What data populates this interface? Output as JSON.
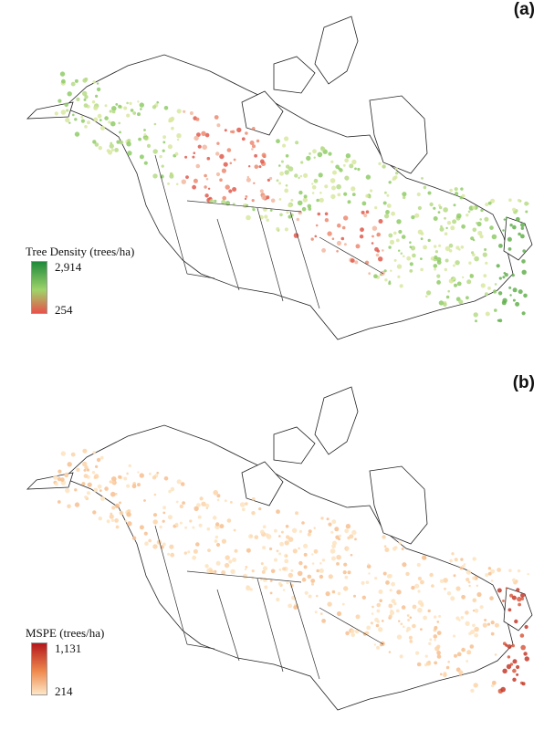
{
  "panels": [
    {
      "label": "(a)",
      "legend": {
        "title": "Tree Density (trees/ha)",
        "max": "2,914",
        "min": "254",
        "color_high": "#1e8a3a",
        "color_mid": "#9fd46a",
        "color_low": "#e8524a"
      },
      "palette": [
        "#e05a4e",
        "#ec8a70",
        "#f2b7a0",
        "#d8e8a0",
        "#b6db86",
        "#8fcb66",
        "#63b04e"
      ]
    },
    {
      "label": "(b)",
      "legend": {
        "title": "MSPE (trees/ha)",
        "max": "1,131",
        "min": "214",
        "color_high": "#b3171b",
        "color_mid": "#ef8a4e",
        "color_low": "#fde7c6"
      },
      "palette": [
        "#fde3bf",
        "#fbd3a8",
        "#f7c08f",
        "#f3ae7a",
        "#e9865a",
        "#d95a3e",
        "#c33a2a"
      ]
    }
  ]
}
